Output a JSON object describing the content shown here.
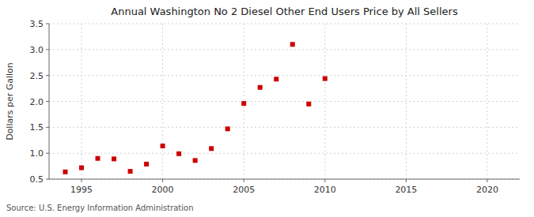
{
  "chart_data": {
    "type": "scatter",
    "title": "Annual Washington No 2 Diesel Other End Users Price by All Sellers",
    "ylabel": "Dollars per Gallon",
    "source": "Source: U.S. Energy Information Administration",
    "x": [
      1994,
      1995,
      1996,
      1997,
      1998,
      1999,
      2000,
      2001,
      2002,
      2003,
      2004,
      2005,
      2006,
      2007,
      2008,
      2009,
      2010
    ],
    "values": [
      0.64,
      0.72,
      0.9,
      0.89,
      0.65,
      0.79,
      1.14,
      0.99,
      0.86,
      1.09,
      1.47,
      1.96,
      2.27,
      2.43,
      3.1,
      1.95,
      2.44
    ],
    "color": "#cc0000",
    "marker": "square",
    "xlim": [
      1993,
      2022
    ],
    "ylim": [
      0.5,
      3.5
    ],
    "xticks": [
      1995,
      2000,
      2005,
      2010,
      2015,
      2020
    ],
    "yticks": [
      0.5,
      {
        "value": 1.0,
        "label": "1.0"
      },
      1.5,
      {
        "value": 2.0,
        "label": "2.0"
      },
      2.5,
      {
        "value": 3.0,
        "label": "3.0"
      },
      3.5
    ],
    "grid": true
  }
}
